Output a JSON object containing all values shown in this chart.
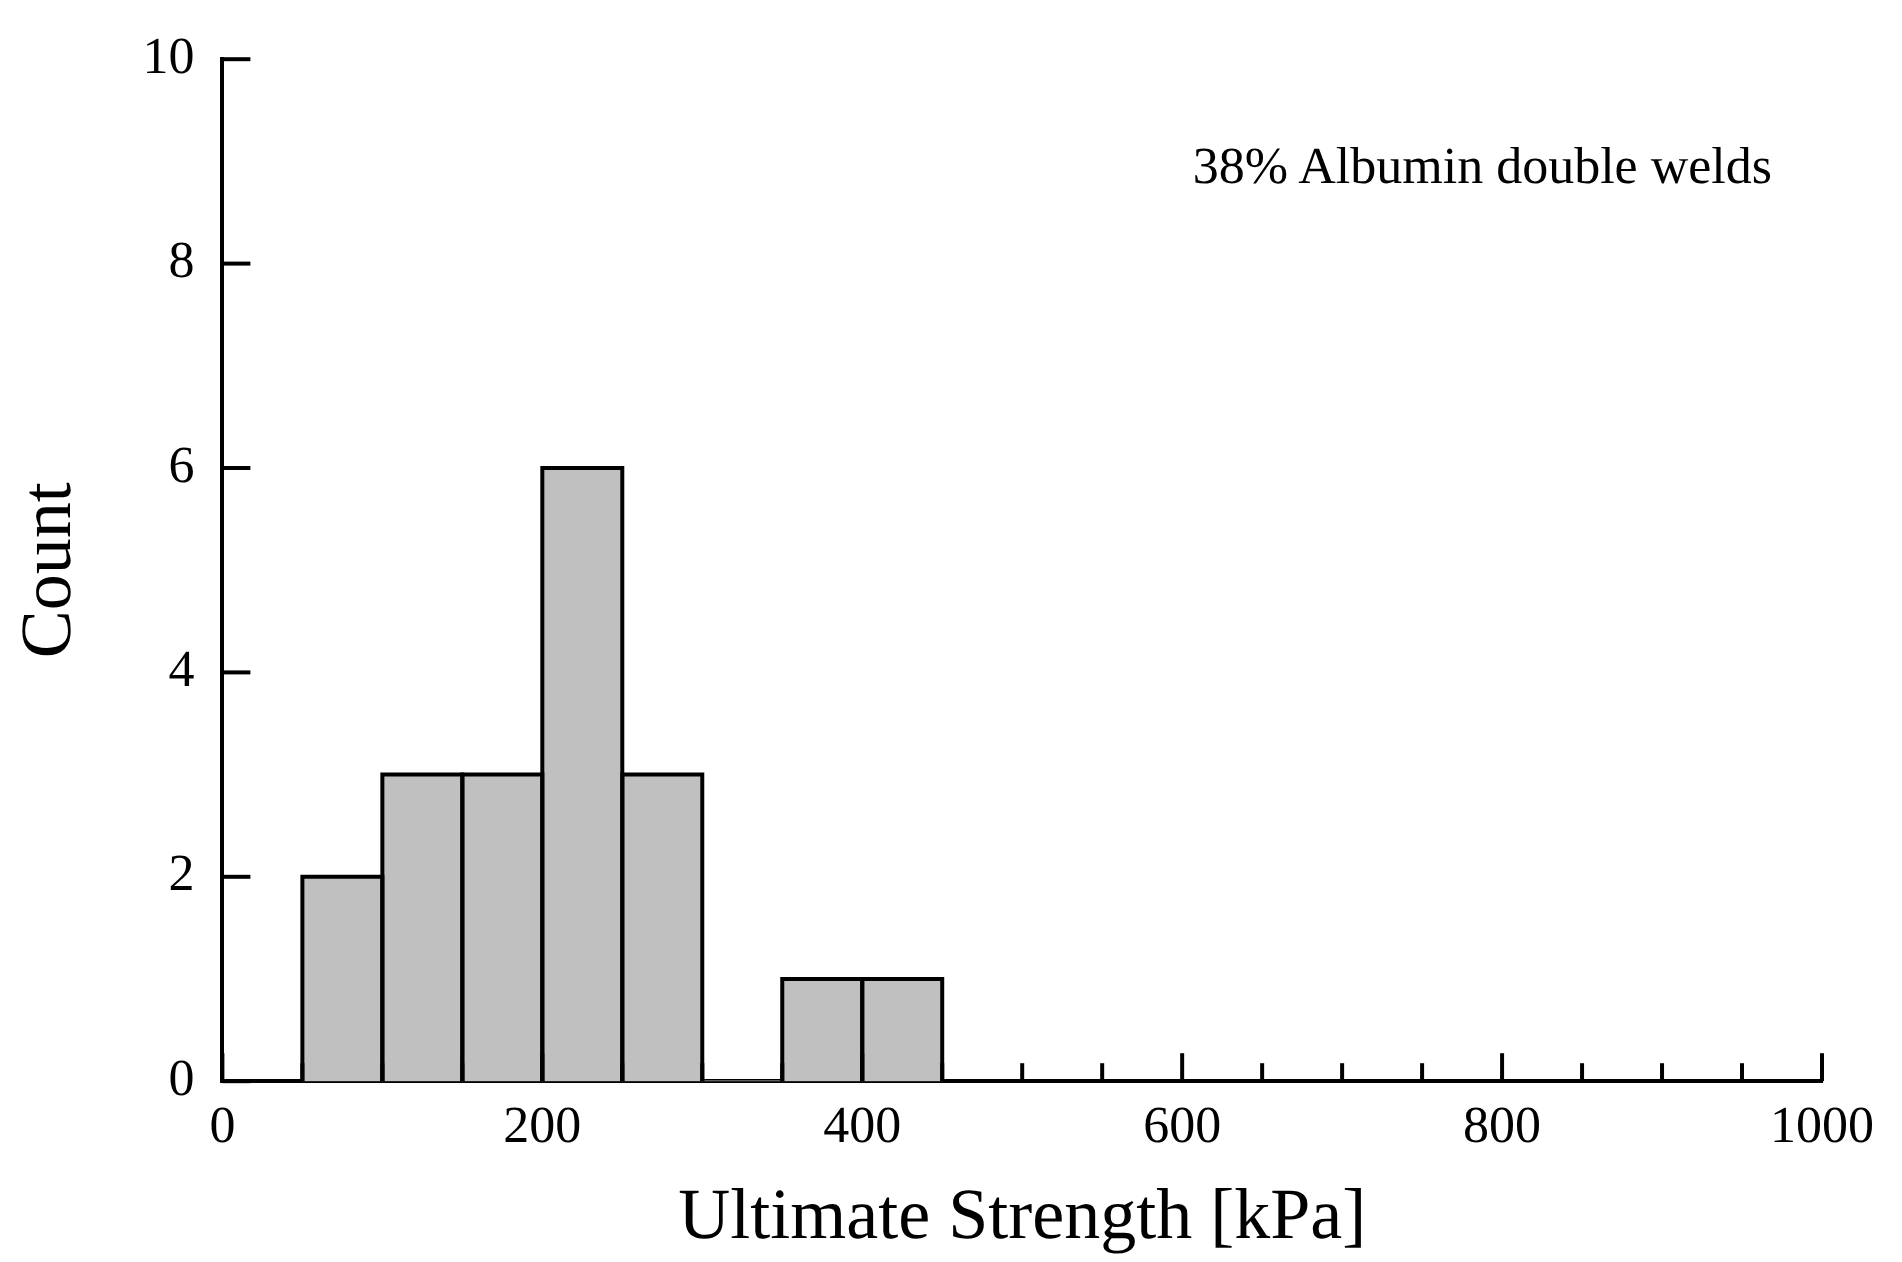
{
  "chart_data": {
    "type": "histogram",
    "xlabel": "Ultimate Strength [kPa]",
    "ylabel": "Count",
    "annotations": [
      "38% Albumin double welds"
    ],
    "bins": [
      50,
      100,
      150,
      200,
      250,
      300,
      350,
      400,
      450
    ],
    "values": [
      2,
      3,
      3,
      6,
      3,
      0,
      1,
      1
    ],
    "color": "#c0c0c0",
    "xlim": [
      0,
      1000
    ],
    "xticks": [
      0,
      {
        "value": 50,
        "label": null
      },
      {
        "value": 100,
        "label": null
      },
      {
        "value": 150,
        "label": null
      },
      200,
      {
        "value": 250,
        "label": null
      },
      {
        "value": 300,
        "label": null
      },
      {
        "value": 350,
        "label": null
      },
      400,
      {
        "value": 450,
        "label": null
      },
      {
        "value": 500,
        "label": null
      },
      {
        "value": 550,
        "label": null
      },
      600,
      {
        "value": 650,
        "label": null
      },
      {
        "value": 700,
        "label": null
      },
      {
        "value": 750,
        "label": null
      },
      800,
      {
        "value": 850,
        "label": null
      },
      {
        "value": 900,
        "label": null
      },
      {
        "value": 950,
        "label": null
      },
      1000
    ],
    "ylim": [
      0,
      10
    ],
    "yticks": [
      0,
      2,
      4,
      6,
      8,
      10
    ]
  }
}
